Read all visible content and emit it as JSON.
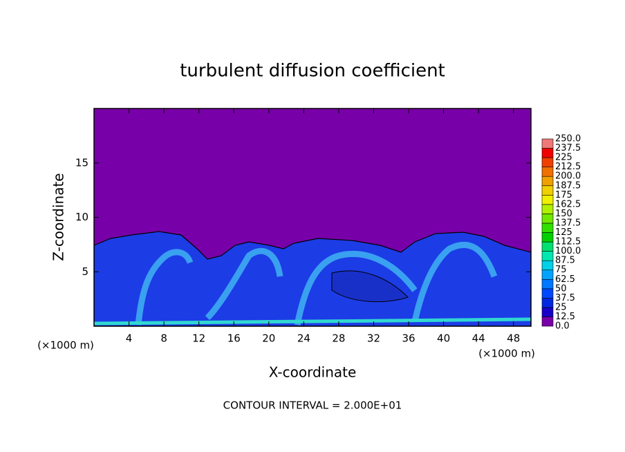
{
  "chart_data": {
    "type": "contour",
    "title": "turbulent diffusion coefficient",
    "x_label": "X-coordinate",
    "y_label": "Z-coordinate",
    "x_unit": "(×1000 m)",
    "y_unit": "(×1000 m)",
    "footer": "CONTOUR INTERVAL = 2.000E+01",
    "xlim": [
      0,
      50
    ],
    "xticks": [
      4,
      8,
      12,
      16,
      20,
      24,
      28,
      32,
      36,
      40,
      44,
      48
    ],
    "ylim": [
      0,
      20
    ],
    "yticks": [
      5,
      10,
      15
    ],
    "colorbar": {
      "levels": [
        {
          "value": 0,
          "label": "0.0"
        },
        12.5,
        25,
        37.5,
        50,
        62.5,
        75,
        87.5,
        {
          "value": 100,
          "label": "100.0"
        },
        112.5,
        125,
        137.5,
        150,
        162.5,
        175,
        187.5,
        {
          "value": 200,
          "label": "200.0"
        },
        212.5,
        225,
        237.5,
        {
          "value": 250,
          "label": "250.0"
        }
      ],
      "colors": [
        "#7a00a8",
        "#1800c8",
        "#0028e0",
        "#0048ff",
        "#0078ff",
        "#00a4ff",
        "#00d0e8",
        "#00e8b0",
        "#00e070",
        "#00d000",
        "#30e000",
        "#70e800",
        "#b0f000",
        "#f0f000",
        "#f0d000",
        "#f0a000",
        "#f07000",
        "#f04000",
        "#f00000",
        "#f07878"
      ]
    }
  }
}
